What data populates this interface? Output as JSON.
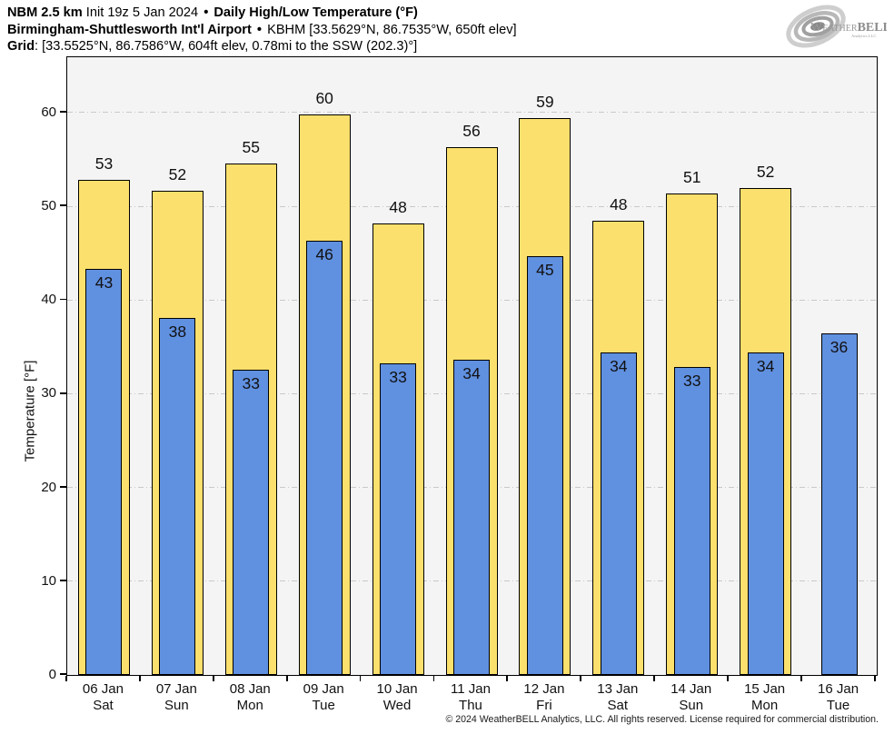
{
  "header": {
    "line1": {
      "model": "NBM 2.5 km",
      "init": "Init 19z 5 Jan 2024",
      "bullet": "•",
      "product": "Daily High/Low Temperature (°F)"
    },
    "line2": {
      "station": "Birmingham-Shuttlesworth Int'l Airport",
      "bullet": "•",
      "info": "KBHM [33.5629°N, 86.7535°W, 650ft elev]"
    },
    "line3": {
      "label": "Grid",
      "info": ": [33.5525°N, 86.7586°W, 604ft elev, 0.78mi to the SSW (202.3)°]"
    }
  },
  "logo": {
    "word_weather": "Weather",
    "word_bell": "BELL",
    "sub": "Analytics LLC"
  },
  "footer": "© 2024 WeatherBELL Analytics, LLC. All rights reserved. License required for commercial distribution.",
  "colors": {
    "high_bar": "#FCE06E",
    "low_bar": "#6090E0",
    "bar_outline": "#000000",
    "plot_background": "#f4f4f4",
    "gridline": "#c9c9c9"
  },
  "chart_data": {
    "type": "bar",
    "title": "Daily High/Low Temperature (°F)",
    "xlabel": "",
    "ylabel": "Temperature [°F]",
    "ylim": [
      0,
      65.9
    ],
    "yticks": [
      0,
      10,
      20,
      30,
      40,
      50,
      60
    ],
    "grid": "horizontal dash-dot",
    "legend": "none",
    "categories": [
      {
        "date": "06 Jan",
        "day": "Sat"
      },
      {
        "date": "07 Jan",
        "day": "Sun"
      },
      {
        "date": "08 Jan",
        "day": "Mon"
      },
      {
        "date": "09 Jan",
        "day": "Tue"
      },
      {
        "date": "10 Jan",
        "day": "Wed"
      },
      {
        "date": "11 Jan",
        "day": "Thu"
      },
      {
        "date": "12 Jan",
        "day": "Fri"
      },
      {
        "date": "13 Jan",
        "day": "Sat"
      },
      {
        "date": "14 Jan",
        "day": "Sun"
      },
      {
        "date": "15 Jan",
        "day": "Mon"
      },
      {
        "date": "16 Jan",
        "day": "Tue"
      }
    ],
    "series": [
      {
        "name": "High",
        "values": [
          53,
          52,
          55,
          60,
          48,
          56,
          59,
          48,
          51,
          52,
          null
        ],
        "plotted": [
          52.8,
          51.7,
          54.6,
          59.8,
          48.2,
          56.3,
          59.4,
          48.5,
          51.4,
          51.9,
          null
        ]
      },
      {
        "name": "Low",
        "values": [
          43,
          38,
          33,
          46,
          33,
          34,
          45,
          34,
          33,
          34,
          36
        ],
        "plotted": [
          43.3,
          38.1,
          32.6,
          46.3,
          33.2,
          33.6,
          44.7,
          34.4,
          32.9,
          34.4,
          36.4
        ]
      }
    ]
  }
}
